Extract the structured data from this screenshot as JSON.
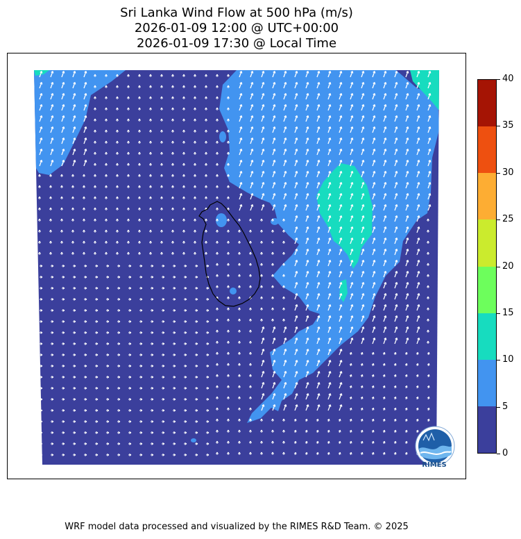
{
  "title": {
    "line1": "Sri Lanka Wind Flow at 500 hPa (m/s)",
    "line2": "2026-01-09 12:00 @ UTC+00:00",
    "line3": "2026-01-09 17:30 @ Local Time"
  },
  "colorbar": {
    "levels": [
      0,
      5,
      10,
      15,
      20,
      25,
      30,
      35,
      40
    ],
    "tick_labels": [
      "0",
      "5",
      "10",
      "15",
      "20",
      "25",
      "30",
      "35",
      "40"
    ],
    "colors": [
      "#3b3f9c",
      "#4294f0",
      "#17dcbf",
      "#6dfe5c",
      "#cbeb2d",
      "#fdad33",
      "#ee5010",
      "#a51404"
    ]
  },
  "map": {
    "background_color": "#3b3f9c",
    "arrow_color": "#ffffff",
    "coastline_color": "#000000"
  },
  "logo": {
    "text": "RIMES",
    "icon": "rimes-globe-logo-icon"
  },
  "footer": {
    "credit": "WRF model data processed and visualized by the RIMES R&D Team. © 2025"
  }
}
